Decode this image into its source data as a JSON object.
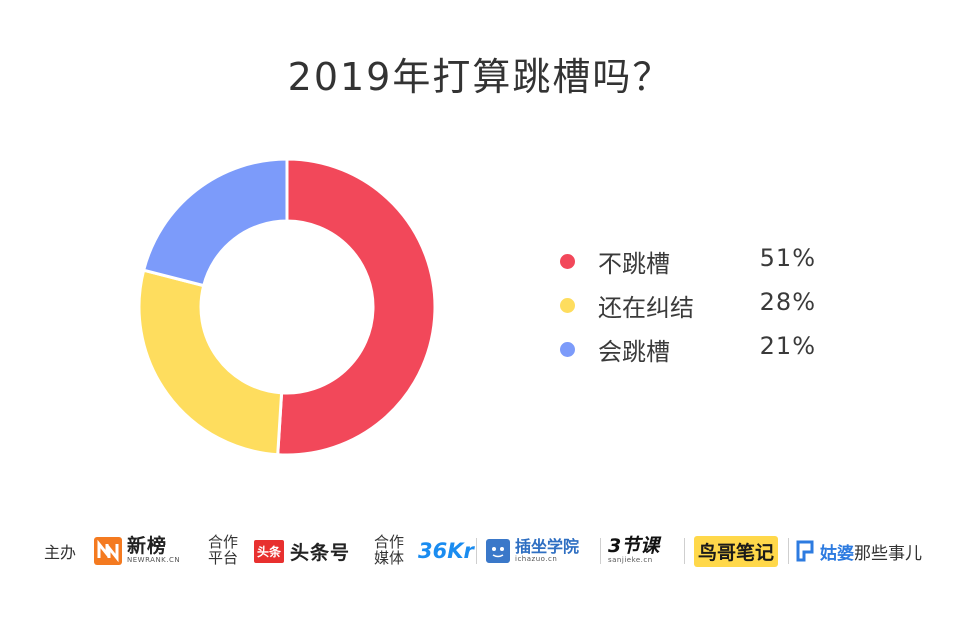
{
  "chart_data": {
    "type": "pie",
    "title": "2019年打算跳槽吗？",
    "series": [
      {
        "name": "不跳槽",
        "value": 51,
        "label": "51%",
        "color": "#f2485a"
      },
      {
        "name": "还在纠结",
        "value": 28,
        "label": "28%",
        "color": "#fedd5e"
      },
      {
        "name": "会跳槽",
        "value": 21,
        "label": "21%",
        "color": "#7c9bfa"
      }
    ],
    "legend_position": "right"
  },
  "footer": {
    "host_label": "主办",
    "host_logo_name": "新榜",
    "host_logo_sub": "NEWRANK.CN",
    "partner_label_1": "合作",
    "partner_label_2": "平台",
    "partner_logo_badge": "头条",
    "partner_logo_name": "头条号",
    "media_label_1": "合作",
    "media_label_2": "媒体",
    "media_1": "36Kr",
    "media_2_name": "插坐学院",
    "media_2_sub": "ichazuo.cn",
    "media_3_name": "3节课",
    "media_3_sub": "sanjieke.cn",
    "media_4": "鸟哥笔记",
    "media_5_bold": "姑婆",
    "media_5_rest": "那些事儿"
  }
}
